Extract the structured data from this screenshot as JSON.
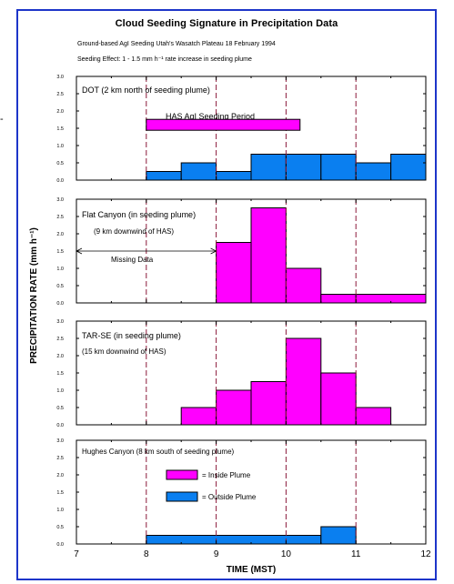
{
  "figure": {
    "title": "Cloud Seeding Signature in Precipitation Data",
    "subtitle1": "Ground-based AgI Seeding  Utah's Wasatch Plateau  18 February 1994",
    "subtitle2": "Seeding Effect:  1 - 1.5 mm h⁻¹ rate increase in seeding plume",
    "side_mark": "-"
  },
  "colors": {
    "inside": "#ff00ff",
    "outside": "#0a7ff0",
    "frame": "#1d35c9",
    "vline": "#8b1a3a"
  },
  "chart_data": {
    "type": "bar",
    "xlabel": "TIME (MST)",
    "ylabel": "PRECIPITATION RATE (mm h⁻¹)",
    "xlim": [
      7,
      12
    ],
    "ylim": [
      0,
      3.0
    ],
    "x_ticks": [
      "7",
      "8",
      "9",
      "10",
      "11",
      "12"
    ],
    "y_ticks": [
      "0.0",
      "0.5",
      "1.0",
      "1.5",
      "2.0",
      "2.5",
      "3.0"
    ],
    "vertical_reference_lines": [
      8,
      9,
      10,
      11
    ],
    "legend": [
      {
        "label": "= Inside Plume",
        "color": "#ff00ff"
      },
      {
        "label": "= Outside Plume",
        "color": "#0a7ff0"
      }
    ],
    "panels": [
      {
        "name": "DOT",
        "annotations": [
          "DOT (2 km north of seeding plume)",
          "HAS AgI Seeding Period"
        ],
        "seeding_period": {
          "start": 8.0,
          "end": 10.2,
          "level": 1.6
        },
        "series": [
          {
            "plume": "outside",
            "bins": [
              [
                8.0,
                8.5,
                0.25
              ],
              [
                8.5,
                9.0,
                0.5
              ],
              [
                9.0,
                9.5,
                0.25
              ],
              [
                9.5,
                10.0,
                0.75
              ],
              [
                10.0,
                10.5,
                0.75
              ],
              [
                10.5,
                11.0,
                0.75
              ],
              [
                11.0,
                11.5,
                0.5
              ],
              [
                11.5,
                12.0,
                0.75
              ]
            ]
          }
        ]
      },
      {
        "name": "Flat Canyon",
        "annotations": [
          "Flat Canyon (in seeding plume)",
          "(9 km downwind of HAS)",
          "Missing Data"
        ],
        "missing_data": {
          "start": 7.0,
          "end": 9.0,
          "level": 1.5
        },
        "series": [
          {
            "plume": "inside",
            "bins": [
              [
                9.0,
                9.5,
                1.75
              ],
              [
                9.5,
                10.0,
                2.75
              ],
              [
                10.0,
                10.5,
                1.0
              ],
              [
                10.5,
                11.0,
                0.25
              ],
              [
                11.0,
                12.0,
                0.25
              ]
            ]
          }
        ]
      },
      {
        "name": "TAR-SE",
        "annotations": [
          "TAR-SE (in seeding plume)",
          "(15 km downwind of HAS)"
        ],
        "series": [
          {
            "plume": "inside",
            "bins": [
              [
                8.5,
                9.0,
                0.5
              ],
              [
                9.0,
                9.5,
                1.0
              ],
              [
                9.5,
                10.0,
                1.25
              ],
              [
                10.0,
                10.5,
                2.5
              ],
              [
                10.5,
                11.0,
                1.5
              ],
              [
                11.0,
                11.5,
                0.5
              ]
            ]
          }
        ]
      },
      {
        "name": "Hughes Canyon",
        "annotations": [
          "Hughes Canyon (8 km south of seeding plume)"
        ],
        "show_legend": true,
        "series": [
          {
            "plume": "outside",
            "bins": [
              [
                8.0,
                10.5,
                0.25
              ],
              [
                10.5,
                11.0,
                0.5
              ]
            ]
          }
        ]
      }
    ]
  }
}
